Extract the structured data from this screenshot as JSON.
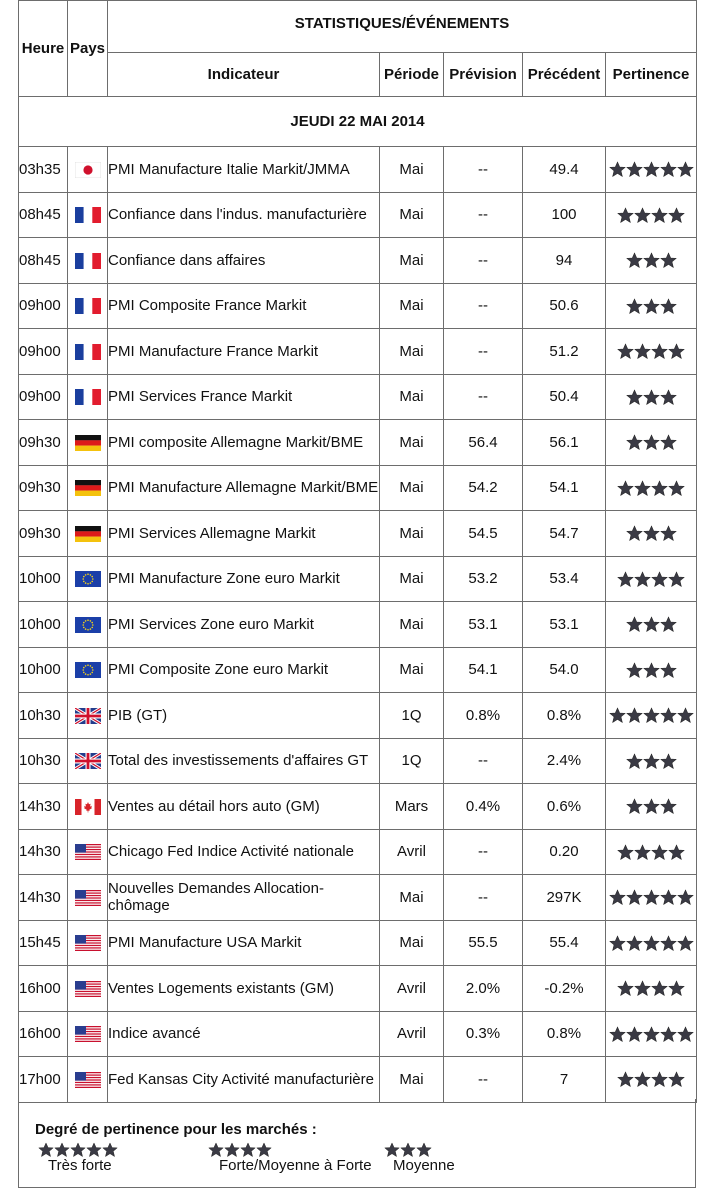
{
  "header": {
    "heure": "Heure",
    "pays": "Pays",
    "group_title": "STATISTIQUES/ÉVÉNEMENTS",
    "indicateur": "Indicateur",
    "periode": "Période",
    "prevision": "Prévision",
    "precedent": "Précédent",
    "pertinence": "Pertinence"
  },
  "day_label": "JEUDI 22 MAI 2014",
  "colors": {
    "border": "#6d6d6d",
    "star": "#3a3a44"
  },
  "rows": [
    {
      "time": "03h35",
      "country": "japan-flag-icon",
      "indicator": "PMI Manufacture Italie Markit/JMMA",
      "period": "Mai",
      "forecast": "--",
      "previous": "49.4",
      "stars": 5
    },
    {
      "time": "08h45",
      "country": "france-flag-icon",
      "indicator": "Confiance dans l'indus. manufacturière",
      "period": "Mai",
      "forecast": "--",
      "previous": "100",
      "stars": 4
    },
    {
      "time": "08h45",
      "country": "france-flag-icon",
      "indicator": "Confiance dans affaires",
      "period": "Mai",
      "forecast": "--",
      "previous": "94",
      "stars": 3
    },
    {
      "time": "09h00",
      "country": "france-flag-icon",
      "indicator": "PMI Composite France Markit",
      "period": "Mai",
      "forecast": "--",
      "previous": "50.6",
      "stars": 3
    },
    {
      "time": "09h00",
      "country": "france-flag-icon",
      "indicator": "PMI Manufacture France Markit",
      "period": "Mai",
      "forecast": "--",
      "previous": "51.2",
      "stars": 4
    },
    {
      "time": "09h00",
      "country": "france-flag-icon",
      "indicator": "PMI Services France Markit",
      "period": "Mai",
      "forecast": "--",
      "previous": "50.4",
      "stars": 3
    },
    {
      "time": "09h30",
      "country": "germany-flag-icon",
      "indicator": "PMI composite Allemagne Markit/BME",
      "period": "Mai",
      "forecast": "56.4",
      "previous": "56.1",
      "stars": 3
    },
    {
      "time": "09h30",
      "country": "germany-flag-icon",
      "indicator": "PMI Manufacture Allemagne Markit/BME",
      "period": "Mai",
      "forecast": "54.2",
      "previous": "54.1",
      "stars": 4
    },
    {
      "time": "09h30",
      "country": "germany-flag-icon",
      "indicator": "PMI Services Allemagne Markit",
      "period": "Mai",
      "forecast": "54.5",
      "previous": "54.7",
      "stars": 3
    },
    {
      "time": "10h00",
      "country": "eu-flag-icon",
      "indicator": "PMI Manufacture Zone euro Markit",
      "period": "Mai",
      "forecast": "53.2",
      "previous": "53.4",
      "stars": 4
    },
    {
      "time": "10h00",
      "country": "eu-flag-icon",
      "indicator": "PMI Services Zone euro Markit",
      "period": "Mai",
      "forecast": "53.1",
      "previous": "53.1",
      "stars": 3
    },
    {
      "time": "10h00",
      "country": "eu-flag-icon",
      "indicator": "PMI Composite Zone euro Markit",
      "period": "Mai",
      "forecast": "54.1",
      "previous": "54.0",
      "stars": 3
    },
    {
      "time": "10h30",
      "country": "uk-flag-icon",
      "indicator": "PIB (GT)",
      "period": "1Q",
      "forecast": "0.8%",
      "previous": "0.8%",
      "stars": 5
    },
    {
      "time": "10h30",
      "country": "uk-flag-icon",
      "indicator": "Total des investissements d'affaires GT",
      "period": "1Q",
      "forecast": "--",
      "previous": "2.4%",
      "stars": 3
    },
    {
      "time": "14h30",
      "country": "canada-flag-icon",
      "indicator": "Ventes au détail hors auto (GM)",
      "period": "Mars",
      "forecast": "0.4%",
      "previous": "0.6%",
      "stars": 3
    },
    {
      "time": "14h30",
      "country": "usa-flag-icon",
      "indicator": "Chicago Fed Indice Activité nationale",
      "period": "Avril",
      "forecast": "--",
      "previous": "0.20",
      "stars": 4
    },
    {
      "time": "14h30",
      "country": "usa-flag-icon",
      "indicator": "Nouvelles Demandes Allocation-chômage",
      "period": "Mai",
      "forecast": "--",
      "previous": "297K",
      "stars": 5
    },
    {
      "time": "15h45",
      "country": "usa-flag-icon",
      "indicator": "PMI Manufacture USA Markit",
      "period": "Mai",
      "forecast": "55.5",
      "previous": "55.4",
      "stars": 5
    },
    {
      "time": "16h00",
      "country": "usa-flag-icon",
      "indicator": "Ventes Logements existants (GM)",
      "period": "Avril",
      "forecast": "2.0%",
      "previous": "-0.2%",
      "stars": 4
    },
    {
      "time": "16h00",
      "country": "usa-flag-icon",
      "indicator": "Indice avancé",
      "period": "Avril",
      "forecast": "0.3%",
      "previous": "0.8%",
      "stars": 5
    },
    {
      "time": "17h00",
      "country": "usa-flag-icon",
      "indicator": "Fed Kansas City Activité manufacturière",
      "period": "Mai",
      "forecast": "--",
      "previous": "7",
      "stars": 4
    }
  ],
  "legend": {
    "title": "Degré de pertinence pour les marchés :",
    "items": [
      {
        "stars": 5,
        "label": "Très forte"
      },
      {
        "stars": 4,
        "label": "Forte/Moyenne à Forte"
      },
      {
        "stars": 3,
        "label": "Moyenne"
      }
    ]
  }
}
